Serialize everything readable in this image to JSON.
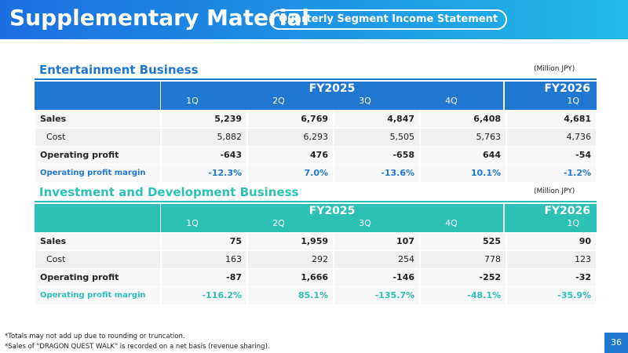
{
  "header": {
    "title": "Supplementary Material",
    "subtitle": "Quarterly Segment Income Statement"
  },
  "sections": [
    {
      "title": "Entertainment Business",
      "unit": "(Million JPY)",
      "table": {
        "groups": [
          "FY2025",
          "FY2026"
        ],
        "columns": [
          "1Q",
          "2Q",
          "3Q",
          "4Q",
          "1Q"
        ],
        "rows": [
          [
            "Sales",
            "5,239",
            "6,769",
            "4,847",
            "6,408",
            "4,681"
          ],
          [
            "Cost",
            "5,882",
            "6,293",
            "5,505",
            "5,763",
            "4,736"
          ],
          [
            "Operating profit",
            "-643",
            "476",
            "-658",
            "644",
            "-54"
          ],
          [
            "Operating profit margin",
            "-12.3%",
            "7.0%",
            "-13.6%",
            "10.1%",
            "-1.2%"
          ]
        ]
      }
    },
    {
      "title": "Investment and Development Business",
      "unit": "(Million JPY)",
      "table": {
        "groups": [
          "FY2025",
          "FY2026"
        ],
        "columns": [
          "1Q",
          "2Q",
          "3Q",
          "4Q",
          "1Q"
        ],
        "rows": [
          [
            "Sales",
            "75",
            "1,959",
            "107",
            "525",
            "90"
          ],
          [
            "Cost",
            "163",
            "292",
            "254",
            "778",
            "123"
          ],
          [
            "Operating profit",
            "-87",
            "1,666",
            "-146",
            "-252",
            "-32"
          ],
          [
            "Operating profit margin",
            "-116.2%",
            "85.1%",
            "-135.7%",
            "-48.1%",
            "-35.9%"
          ]
        ]
      }
    }
  ],
  "footnotes": [
    "*Totals may not add up due to rounding or truncation.",
    "*Sales of \"DRAGON QUEST WALK\" is recorded on a net basis (revenue sharing)."
  ],
  "page_number": "36"
}
